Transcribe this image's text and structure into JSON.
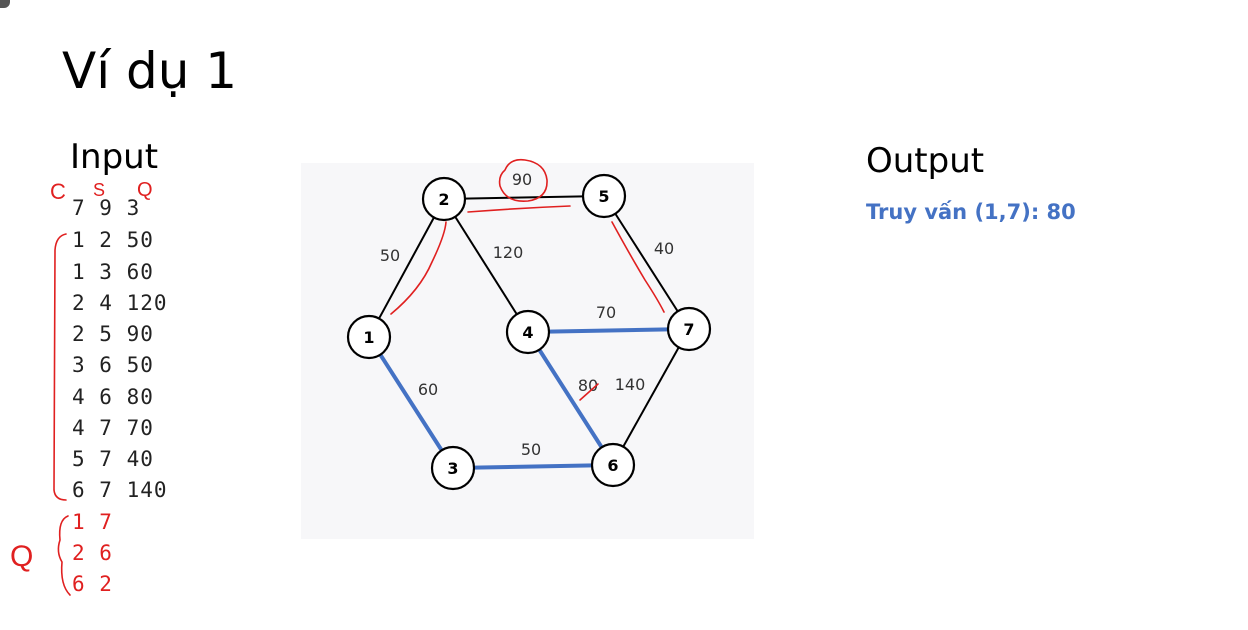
{
  "title": "Ví dụ 1",
  "input": {
    "heading": "Input",
    "header_line": "7 9 3",
    "edge_lines": [
      "1 2 50",
      "1 3 60",
      "2 4 120",
      "2 5 90",
      "3 6 50",
      "4 6 80",
      "4 7 70",
      "5 7 40",
      "6 7 140"
    ],
    "query_lines": [
      "1 7",
      "2 6",
      "6 2"
    ],
    "header_annotations": [
      "C",
      "S",
      "Q"
    ],
    "query_annotation": "Q"
  },
  "output": {
    "heading": "Output",
    "result": "Truy vấn (1,7): 80"
  },
  "graph": {
    "nodes": [
      "1",
      "2",
      "3",
      "4",
      "5",
      "6",
      "7"
    ],
    "edges": [
      {
        "from": "1",
        "to": "2",
        "weight": "50",
        "highlight": false
      },
      {
        "from": "1",
        "to": "3",
        "weight": "60",
        "highlight": true
      },
      {
        "from": "2",
        "to": "4",
        "weight": "120",
        "highlight": false
      },
      {
        "from": "2",
        "to": "5",
        "weight": "90",
        "highlight": false
      },
      {
        "from": "3",
        "to": "6",
        "weight": "50",
        "highlight": true
      },
      {
        "from": "4",
        "to": "6",
        "weight": "80",
        "highlight": true
      },
      {
        "from": "4",
        "to": "7",
        "weight": "70",
        "highlight": true
      },
      {
        "from": "5",
        "to": "7",
        "weight": "40",
        "highlight": false
      },
      {
        "from": "6",
        "to": "7",
        "weight": "140",
        "highlight": false
      }
    ],
    "colors": {
      "highlight": "#4472c4",
      "edge": "#000000",
      "annotation": "#e02020",
      "node_fill": "#ffffff"
    }
  }
}
